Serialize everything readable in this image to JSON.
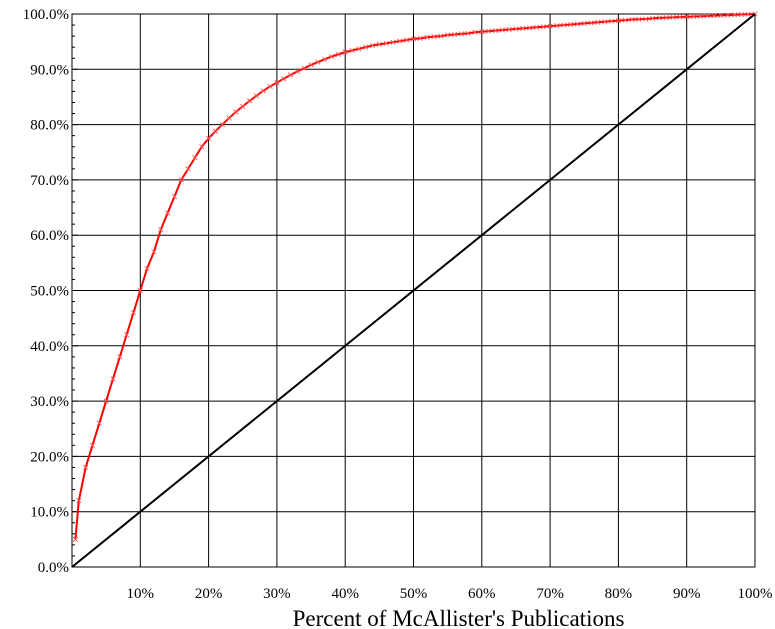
{
  "chart_data": {
    "type": "line",
    "title": "",
    "xlabel": "Percent of McAllister's Publications",
    "ylabel": "",
    "xlim": [
      0,
      100
    ],
    "ylim": [
      0,
      100
    ],
    "grid": true,
    "legend": "none",
    "x_tick_labels": [
      "10%",
      "20%",
      "30%",
      "40%",
      "50%",
      "60%",
      "70%",
      "80%",
      "90%",
      "100%"
    ],
    "y_tick_labels": [
      "0.0%",
      "10.0%",
      "20.0%",
      "30.0%",
      "40.0%",
      "50.0%",
      "60.0%",
      "70.0%",
      "80.0%",
      "90.0%",
      "100.0%"
    ],
    "series": [
      {
        "color": "#ff0000",
        "marker": "x",
        "x": [
          0.5,
          1,
          2,
          3,
          4,
          5,
          6,
          7,
          8,
          9,
          10,
          11,
          12,
          13,
          14,
          15,
          16,
          17,
          18,
          19,
          20,
          21,
          22,
          23,
          24,
          25,
          26,
          27,
          28,
          29,
          30,
          31,
          32,
          33,
          34,
          35,
          36,
          37,
          38,
          39,
          40,
          41,
          42,
          43,
          44,
          45,
          46,
          47,
          48,
          49,
          50,
          51,
          52,
          53,
          54,
          55,
          56,
          57,
          58,
          59,
          60,
          61,
          62,
          63,
          64,
          65,
          66,
          67,
          68,
          69,
          70,
          71,
          72,
          73,
          74,
          75,
          76,
          77,
          78,
          79,
          80,
          81,
          82,
          83,
          84,
          85,
          86,
          87,
          88,
          89,
          90,
          91,
          92,
          93,
          94,
          95,
          96,
          97,
          98,
          99,
          100
        ],
        "y": [
          5,
          12,
          18,
          22,
          26,
          30,
          34,
          38,
          42,
          46,
          50,
          54,
          57,
          61,
          64,
          67,
          70,
          72,
          74,
          76,
          77.5,
          78.8,
          80,
          81.2,
          82.3,
          83.3,
          84.3,
          85.2,
          86.1,
          86.9,
          87.6,
          88.3,
          89,
          89.6,
          90.2,
          90.8,
          91.3,
          91.8,
          92.3,
          92.7,
          93.1,
          93.4,
          93.7,
          94,
          94.3,
          94.5,
          94.7,
          94.9,
          95.1,
          95.3,
          95.5,
          95.6,
          95.8,
          95.9,
          96,
          96.2,
          96.3,
          96.4,
          96.5,
          96.7,
          96.8,
          96.9,
          97,
          97.1,
          97.2,
          97.3,
          97.4,
          97.5,
          97.6,
          97.7,
          97.8,
          97.9,
          98,
          98.1,
          98.2,
          98.3,
          98.4,
          98.5,
          98.6,
          98.7,
          98.8,
          98.9,
          99,
          99.05,
          99.1,
          99.2,
          99.3,
          99.35,
          99.4,
          99.45,
          99.5,
          99.55,
          99.6,
          99.65,
          99.7,
          99.75,
          99.8,
          99.85,
          99.9,
          99.95,
          100
        ]
      },
      {
        "color": "#000000",
        "x": [
          0,
          100
        ],
        "y": [
          0,
          100
        ]
      }
    ]
  }
}
